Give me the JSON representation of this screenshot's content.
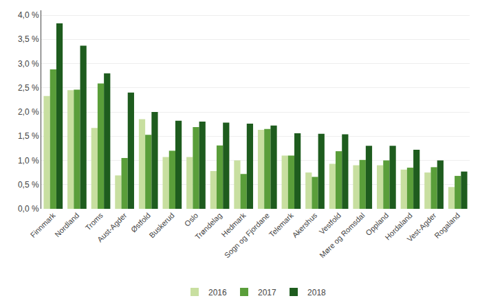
{
  "chart_data": {
    "type": "bar",
    "categories": [
      "Finnmark",
      "Nordland",
      "Troms",
      "Aust-Agder",
      "Østfold",
      "Buskerud",
      "Oslo",
      "Trøndelag",
      "Hedmark",
      "Sogn og Fjordane",
      "Telemark",
      "Akershus",
      "Vestfold",
      "Møre og Romsdal",
      "Oppland",
      "Hordaland",
      "Vest-Agder",
      "Rogaland"
    ],
    "series": [
      {
        "name": "2016",
        "color": "#c8dfa0",
        "values": [
          0.0233,
          0.0245,
          0.0167,
          0.0069,
          0.0185,
          0.0107,
          0.0107,
          0.0078,
          0.01,
          0.0163,
          0.011,
          0.0075,
          0.0093,
          0.009,
          0.009,
          0.0081,
          0.0075,
          0.0045
        ]
      },
      {
        "name": "2017",
        "color": "#5a9e3a",
        "values": [
          0.0288,
          0.0246,
          0.0259,
          0.0105,
          0.0153,
          0.012,
          0.0169,
          0.0131,
          0.0072,
          0.0165,
          0.011,
          0.0066,
          0.0119,
          0.0101,
          0.01,
          0.0085,
          0.0086,
          0.0068
        ]
      },
      {
        "name": "2018",
        "color": "#1e5c1e",
        "values": [
          0.0383,
          0.0337,
          0.028,
          0.024,
          0.02,
          0.0182,
          0.018,
          0.0178,
          0.0176,
          0.0172,
          0.0156,
          0.0155,
          0.0154,
          0.013,
          0.013,
          0.0122,
          0.01,
          0.0077
        ]
      }
    ],
    "ylim": [
      0,
      0.041
    ],
    "yticks": [
      {
        "value": 0,
        "label": "0,0 %"
      },
      {
        "value": 0.005,
        "label": "0,5 %"
      },
      {
        "value": 0.01,
        "label": "1,0 %"
      },
      {
        "value": 0.015,
        "label": "1,5 %"
      },
      {
        "value": 0.02,
        "label": "2,0 %"
      },
      {
        "value": 0.025,
        "label": "2,5 %"
      },
      {
        "value": 0.03,
        "label": "3,0 %"
      },
      {
        "value": 0.035,
        "label": "3,5 %"
      },
      {
        "value": 0.04,
        "label": "4,0 %"
      }
    ],
    "grid": true,
    "legend": "bottom"
  }
}
